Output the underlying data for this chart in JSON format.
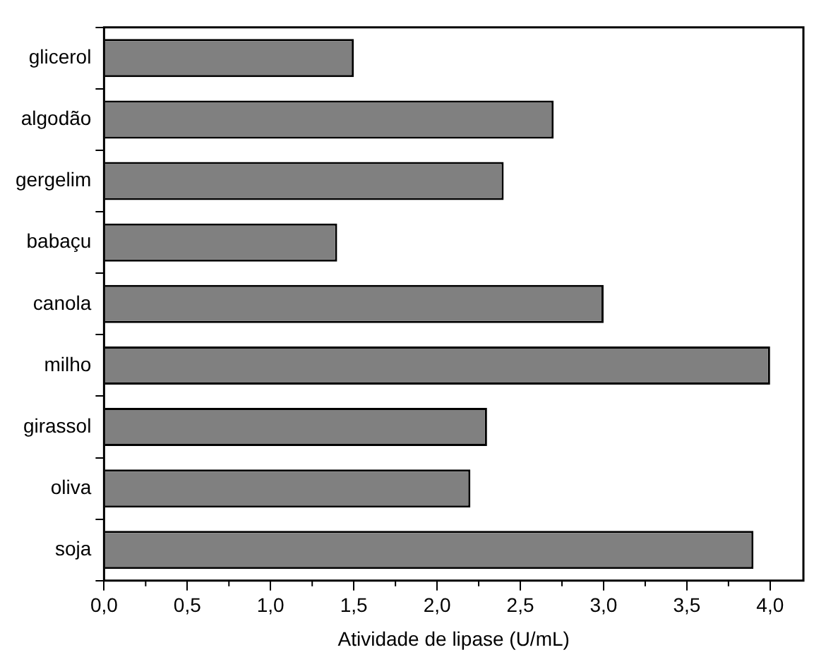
{
  "chart_data": {
    "type": "bar",
    "orientation": "horizontal",
    "xlabel": "Atividade de lipase (U/mL)",
    "categories": [
      "glicerol",
      "algodão",
      "gergelim",
      "babaçu",
      "canola",
      "milho",
      "girassol",
      "oliva",
      "soja"
    ],
    "values": [
      1.5,
      2.7,
      2.4,
      1.4,
      3.0,
      4.0,
      2.3,
      2.2,
      3.9
    ],
    "color": "#808080",
    "xlim": [
      0,
      4.2
    ],
    "xticks": [
      {
        "value": 0,
        "label": "0,0"
      },
      {
        "value": 0.5,
        "label": "0,5"
      },
      {
        "value": 1,
        "label": "1,0"
      },
      {
        "value": 1.5,
        "label": "1,5"
      },
      {
        "value": 2,
        "label": "2,0"
      },
      {
        "value": 2.5,
        "label": "2,5"
      },
      {
        "value": 3,
        "label": "3,0"
      },
      {
        "value": 3.5,
        "label": "3,5"
      },
      {
        "value": 4,
        "label": "4,0"
      }
    ],
    "grid": false,
    "legend": false
  }
}
